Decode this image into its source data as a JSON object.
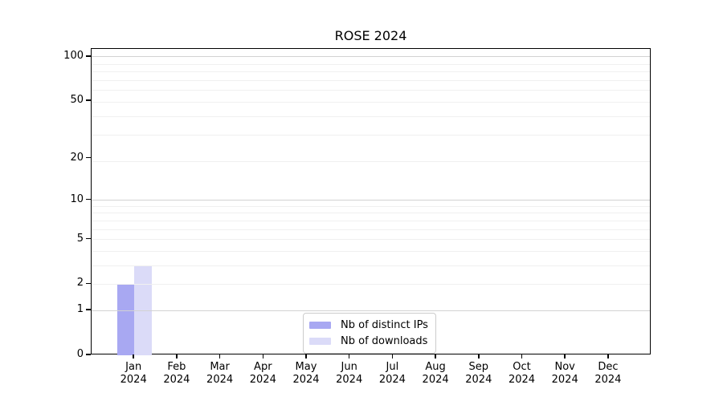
{
  "chart_data": {
    "type": "bar",
    "title": "ROSE 2024",
    "x_tick_labels": [
      [
        "Jan",
        "2024"
      ],
      [
        "Feb",
        "2024"
      ],
      [
        "Mar",
        "2024"
      ],
      [
        "Apr",
        "2024"
      ],
      [
        "May",
        "2024"
      ],
      [
        "Jun",
        "2024"
      ],
      [
        "Jul",
        "2024"
      ],
      [
        "Aug",
        "2024"
      ],
      [
        "Sep",
        "2024"
      ],
      [
        "Oct",
        "2024"
      ],
      [
        "Nov",
        "2024"
      ],
      [
        "Dec",
        "2024"
      ]
    ],
    "series": [
      {
        "id": "distinct-ips",
        "name": "Nb of distinct IPs",
        "color": "#a8a8f2",
        "values": [
          2,
          0,
          0,
          0,
          0,
          0,
          0,
          0,
          0,
          0,
          0,
          0
        ]
      },
      {
        "id": "downloads",
        "name": "Nb of downloads",
        "color": "#dbdbf8",
        "values": [
          3,
          0,
          0,
          0,
          0,
          0,
          0,
          0,
          0,
          0,
          0,
          0
        ]
      }
    ],
    "y_axis": {
      "ticks": [
        0,
        1,
        2,
        5,
        10,
        20,
        50,
        100
      ],
      "scale": "log10(1+value)",
      "lim": [
        0,
        113
      ]
    },
    "grid": {
      "major_at": [
        1,
        10,
        100
      ],
      "minor_at": [
        2,
        3,
        4,
        5,
        6,
        7,
        8,
        9,
        19,
        29,
        39,
        49,
        59,
        69,
        79,
        89
      ],
      "major_color": "#d2d2d2",
      "minor_color": "#f0f0f0"
    },
    "legend_position": "inside-bottom-center"
  }
}
